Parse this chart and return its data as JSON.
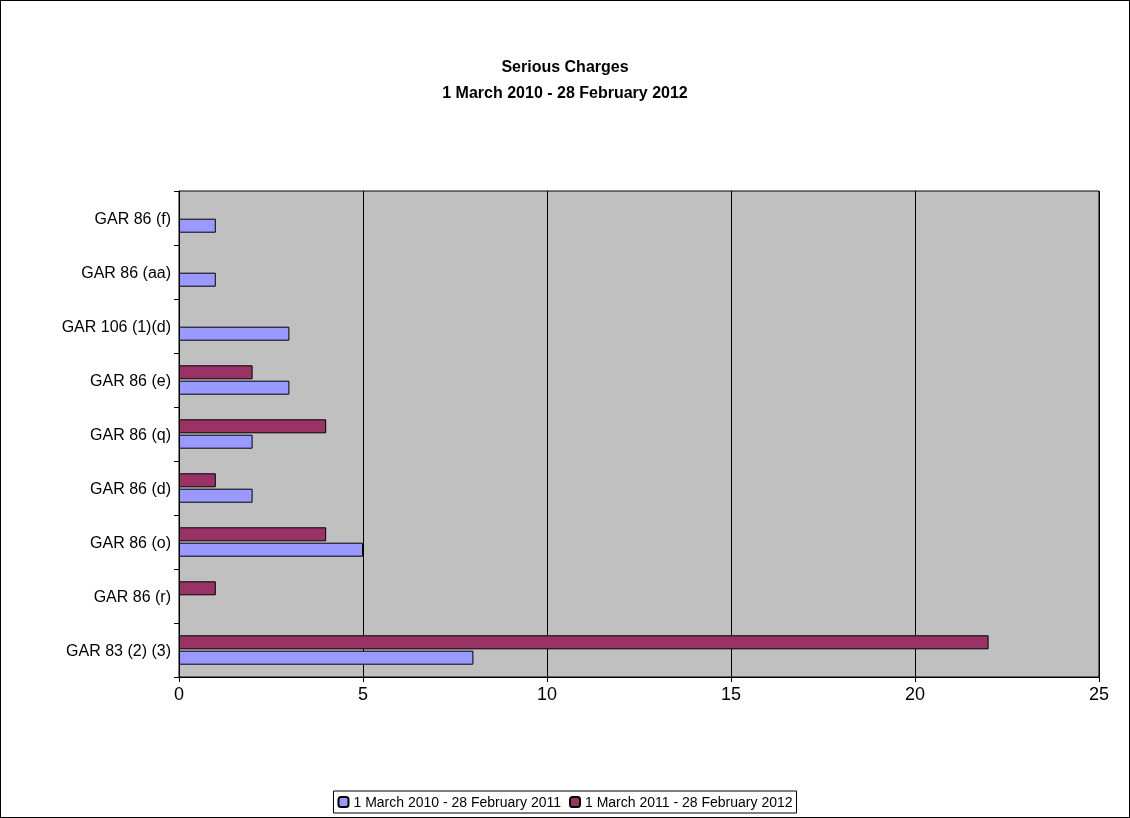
{
  "chart_data": {
    "type": "bar",
    "orientation": "horizontal",
    "title": "Serious Charges",
    "subtitle": "1 March 2010 - 28 February 2012",
    "categories": [
      "GAR 86 (f)",
      "GAR 86 (aa)",
      "GAR 106 (1)(d)",
      "GAR 86 (e)",
      "GAR 86 (q)",
      "GAR 86 (d)",
      "GAR 86 (o)",
      "GAR 86 (r)",
      "GAR 83 (2) (3)"
    ],
    "series": [
      {
        "name": "1 March 2011 - 28 February 2012",
        "color": "#993366",
        "values": [
          0,
          0,
          0,
          2,
          4,
          1,
          4,
          1,
          22
        ]
      },
      {
        "name": "1 March 2010 - 28 February 2011",
        "color": "#9999ff",
        "values": [
          1,
          1,
          3,
          3,
          2,
          2,
          5,
          0,
          8
        ]
      }
    ],
    "xlim": [
      0,
      25
    ],
    "xticks": [
      0,
      5,
      10,
      15,
      20,
      25
    ],
    "grid": "x",
    "legend": "bottom"
  }
}
